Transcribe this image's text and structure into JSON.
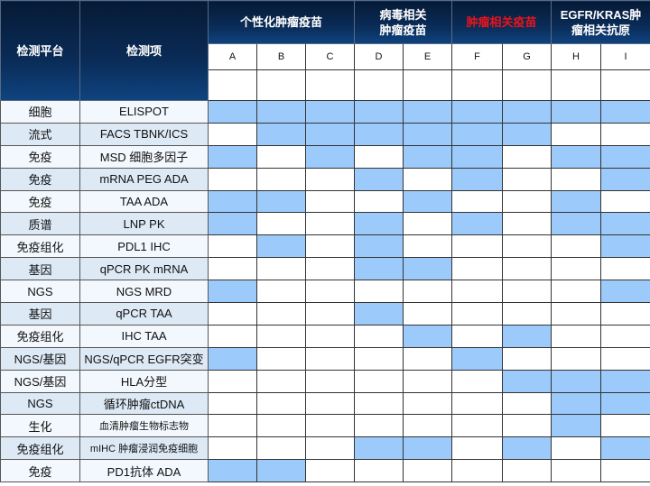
{
  "header": {
    "platform": "检测平台",
    "item": "检测项",
    "groups": [
      {
        "label": "个性化肿瘤疫苗",
        "highlight": false
      },
      {
        "label": "病毒相关\n肿瘤疫苗",
        "highlight": false
      },
      {
        "label": "肿瘤相关疫苗",
        "highlight": true
      },
      {
        "label": "EGFR/KRAS肿\n瘤相关抗原",
        "highlight": false
      }
    ],
    "letters": [
      "A",
      "B",
      "C",
      "D",
      "E",
      "F",
      "G",
      "H",
      "I"
    ]
  },
  "colors": {
    "filled": "#9ccbfb",
    "header_bg": "#0a2c58",
    "highlight_text": "#e8141c"
  },
  "rows": [
    {
      "platform": "细胞",
      "item": "ELISPOT",
      "marks": [
        1,
        1,
        1,
        1,
        1,
        1,
        1,
        1,
        1
      ]
    },
    {
      "platform": "流式",
      "item": "FACS TBNK/ICS",
      "marks": [
        0,
        1,
        1,
        1,
        1,
        1,
        1,
        0,
        0
      ]
    },
    {
      "platform": "免疫",
      "item": "MSD 细胞多因子",
      "marks": [
        1,
        0,
        1,
        0,
        1,
        1,
        0,
        1,
        1
      ]
    },
    {
      "platform": "免疫",
      "item": "mRNA PEG ADA",
      "marks": [
        0,
        0,
        0,
        1,
        0,
        1,
        0,
        0,
        1
      ]
    },
    {
      "platform": "免疫",
      "item": "TAA ADA",
      "marks": [
        1,
        1,
        0,
        0,
        1,
        0,
        0,
        1,
        0
      ]
    },
    {
      "platform": "质谱",
      "item": "LNP PK",
      "marks": [
        1,
        0,
        0,
        1,
        0,
        1,
        0,
        1,
        1
      ]
    },
    {
      "platform": "免疫组化",
      "item": "PDL1 IHC",
      "marks": [
        0,
        1,
        0,
        1,
        0,
        0,
        0,
        0,
        1
      ]
    },
    {
      "platform": "基因",
      "item": "qPCR PK mRNA",
      "marks": [
        0,
        0,
        0,
        1,
        1,
        0,
        0,
        0,
        0
      ]
    },
    {
      "platform": "NGS",
      "item": "NGS MRD",
      "marks": [
        1,
        0,
        0,
        0,
        0,
        0,
        0,
        0,
        1
      ]
    },
    {
      "platform": "基因",
      "item": "qPCR TAA",
      "marks": [
        0,
        0,
        0,
        1,
        0,
        0,
        0,
        0,
        0
      ]
    },
    {
      "platform": "免疫组化",
      "item": "IHC TAA",
      "marks": [
        0,
        0,
        0,
        0,
        1,
        0,
        1,
        0,
        0
      ]
    },
    {
      "platform": "NGS/基因",
      "item": "NGS/qPCR EGFR突变",
      "marks": [
        1,
        0,
        0,
        0,
        0,
        1,
        0,
        0,
        0
      ]
    },
    {
      "platform": "NGS/基因",
      "item": "HLA分型",
      "marks": [
        0,
        0,
        0,
        0,
        0,
        0,
        1,
        1,
        1
      ]
    },
    {
      "platform": "NGS",
      "item": "循环肿瘤ctDNA",
      "marks": [
        0,
        0,
        0,
        0,
        0,
        0,
        0,
        1,
        1
      ]
    },
    {
      "platform": "生化",
      "item": "血清肿瘤生物标志物",
      "marks": [
        0,
        0,
        0,
        0,
        0,
        0,
        0,
        1,
        0
      ],
      "small": true
    },
    {
      "platform": "免疫组化",
      "item": "mIHC 肿瘤浸润免疫细胞",
      "marks": [
        0,
        0,
        0,
        1,
        1,
        0,
        1,
        0,
        1
      ],
      "small": true
    },
    {
      "platform": "免疫",
      "item": "PD1抗体 ADA",
      "marks": [
        1,
        1,
        0,
        0,
        0,
        0,
        0,
        0,
        0
      ]
    }
  ]
}
